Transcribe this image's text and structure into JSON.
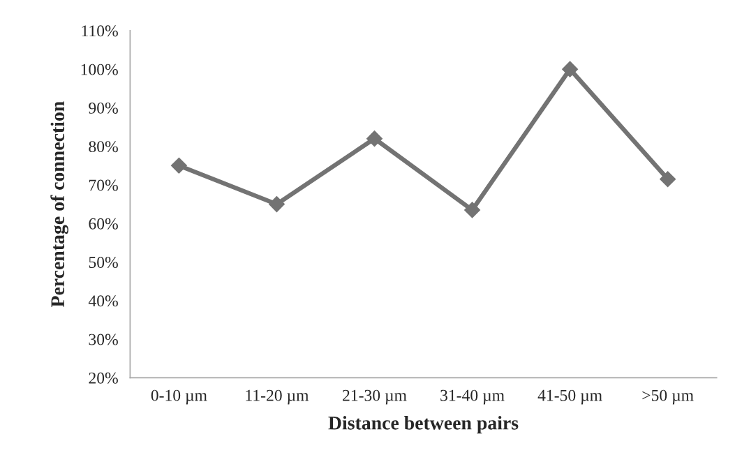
{
  "chart_data": {
    "type": "line",
    "xlabel": "Distance between pairs",
    "ylabel": "Percentage of connection",
    "categories": [
      "0-10 µm",
      "11-20 µm",
      "21-30 µm",
      "31-40 µm",
      "41-50 µm",
      ">50 µm"
    ],
    "series": [
      {
        "color": "#737373",
        "values": [
          75,
          65,
          82,
          63.5,
          100,
          71.5
        ]
      }
    ],
    "ylim": [
      20,
      110
    ],
    "yticks": [
      {
        "value": 20,
        "label": "20%"
      },
      {
        "value": 30,
        "label": "30%"
      },
      {
        "value": 40,
        "label": "40%"
      },
      {
        "value": 50,
        "label": "50%"
      },
      {
        "value": 60,
        "label": "60%"
      },
      {
        "value": 70,
        "label": "70%"
      },
      {
        "value": 80,
        "label": "80%"
      },
      {
        "value": 90,
        "label": "90%"
      },
      {
        "value": 100,
        "label": "100%"
      },
      {
        "value": 110,
        "label": "110%"
      }
    ],
    "grid": false,
    "marker": "diamond",
    "line_style": "solid"
  }
}
